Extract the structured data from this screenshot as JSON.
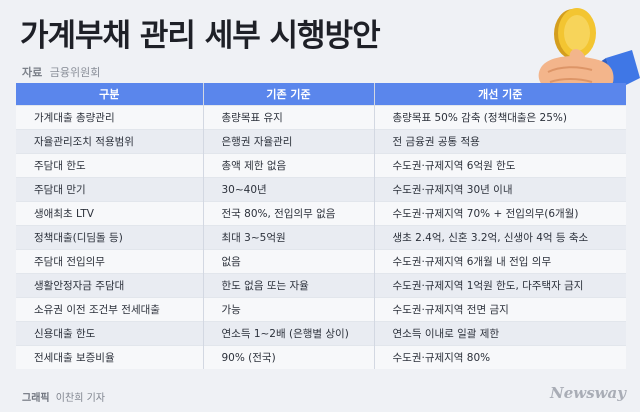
{
  "title": "가계부채 관리 세부 시행방안",
  "source": {
    "label": "자료",
    "value": "금융위원회"
  },
  "table": {
    "headers": [
      "구분",
      "기존 기준",
      "개선 기준"
    ],
    "rows": [
      [
        "가계대출 총량관리",
        "총량목표 유지",
        "총량목표 50% 감축 (정책대출은 25%)"
      ],
      [
        "자율관리조치 적용범위",
        "은행권 자율관리",
        "전 금융권 공통 적용"
      ],
      [
        "주담대 한도",
        "총액 제한 없음",
        "수도권·규제지역 6억원 한도"
      ],
      [
        "주담대 만기",
        "30~40년",
        "수도권·규제지역 30년 이내"
      ],
      [
        "생애최초 LTV",
        "전국 80%, 전입의무 없음",
        "수도권·규제지역 70% + 전입의무(6개월)"
      ],
      [
        "정책대출(디딤돌 등)",
        "최대 3~5억원",
        "생초 2.4억, 신혼 3.2억, 신생아 4억 등 축소"
      ],
      [
        "주담대 전입의무",
        "없음",
        "수도권·규제지역 6개월 내 전입 의무"
      ],
      [
        "생활안정자금 주담대",
        "한도 없음 또는 자율",
        "수도권·규제지역 1억원 한도, 다주택자 금지"
      ],
      [
        "소유권 이전 조건부 전세대출",
        "가능",
        "수도권·규제지역 전면 금지"
      ],
      [
        "신용대출 한도",
        "연소득 1~2배 (은행별 상이)",
        "연소득 이내로 일괄 제한"
      ],
      [
        "전세대출 보증비율",
        "90% (전국)",
        "수도권·규제지역 80%"
      ]
    ]
  },
  "credit": {
    "label": "그래픽",
    "value": "이찬희 기자"
  },
  "logo": "Newsway",
  "colors": {
    "header_bg": "#5a86ec",
    "page_bg": "#eff1f5",
    "coin": "#f3c531"
  }
}
